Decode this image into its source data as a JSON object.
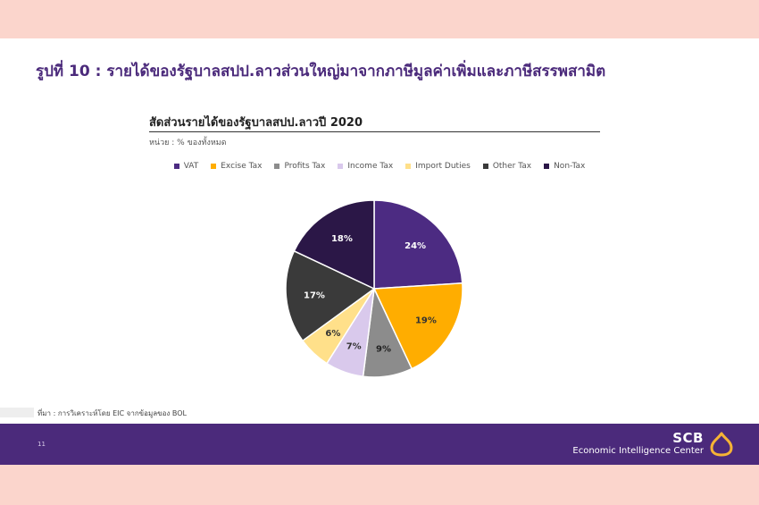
{
  "page": {
    "title": "รูปที่ 10 : รายได้ของรัฐบาลสปป.ลาวส่วนใหญ่มาจากภาษีมูลค่าเพิ่มและภาษีสรรพสามิต",
    "source_note": "ที่มา : การวิเคราะห์โดย EIC จากข้อมูลของ BOL",
    "page_number": "11"
  },
  "brand": {
    "name": "SCB",
    "subtitle": "Economic Intelligence Center",
    "logo_icon": "scb-logo-icon"
  },
  "colors": {
    "accent": "#4b2a7b",
    "band": "#fbd5cc",
    "logo": "#f5b335"
  },
  "chart_data": {
    "type": "pie",
    "title": "สัดส่วนรายได้ของรัฐบาลสปป.ลาวปี 2020",
    "unit_label": "หน่วย : % ของทั้งหมด",
    "legend_position": "top",
    "slices": [
      {
        "label": "VAT",
        "value": 24,
        "display": "24%",
        "color": "#4c2b82",
        "text_color": "#ffffff"
      },
      {
        "label": "Excise Tax",
        "value": 19,
        "display": "19%",
        "color": "#ffad00",
        "text_color": "#333333"
      },
      {
        "label": "Profits Tax",
        "value": 9,
        "display": "9%",
        "color": "#8c8c8c",
        "text_color": "#222222"
      },
      {
        "label": "Income Tax",
        "value": 7,
        "display": "7%",
        "color": "#d9c9ec",
        "text_color": "#333333"
      },
      {
        "label": "Import Duties",
        "value": 6,
        "display": "6%",
        "color": "#ffe08a",
        "text_color": "#333333"
      },
      {
        "label": "Other Tax",
        "value": 17,
        "display": "17%",
        "color": "#3a3a3a",
        "text_color": "#ffffff"
      },
      {
        "label": "Non-Tax",
        "value": 18,
        "display": "18%",
        "color": "#2b1747",
        "text_color": "#ffffff"
      }
    ]
  }
}
